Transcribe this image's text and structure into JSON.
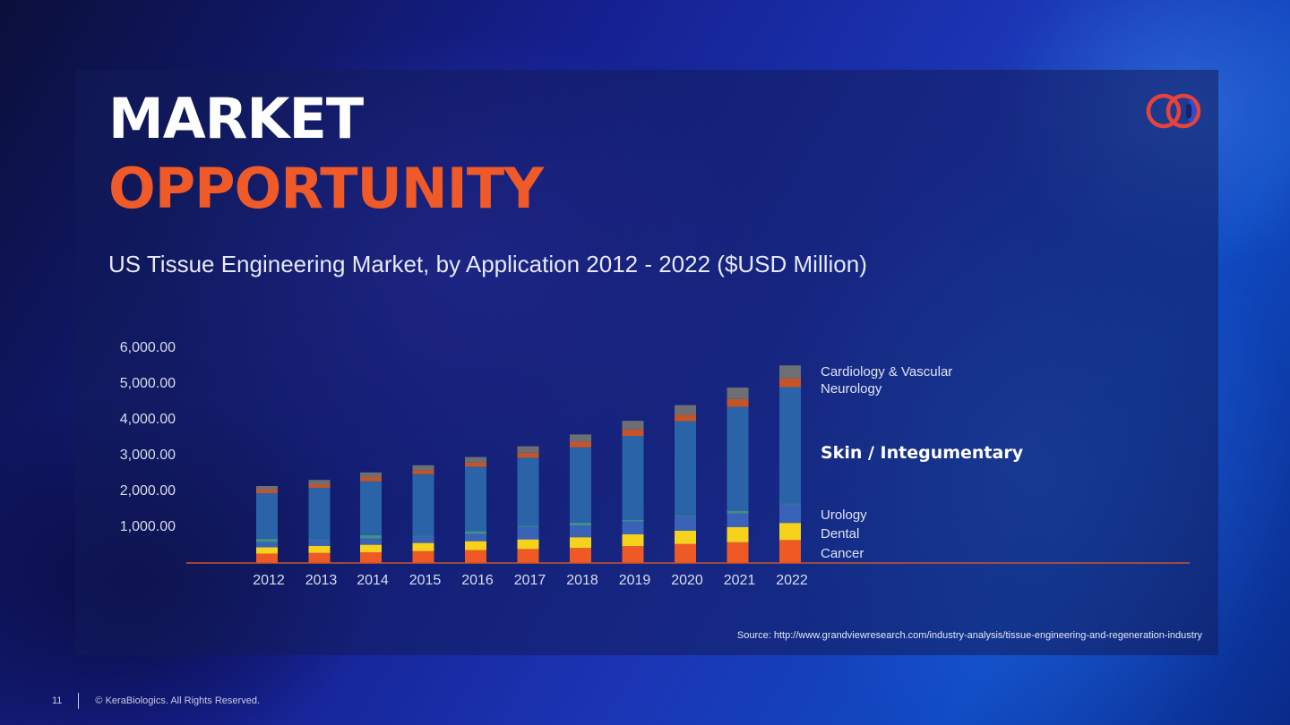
{
  "slide": {
    "title_line1": "MARKET",
    "title_line2": "OPPORTUNITY",
    "subtitle": "US Tissue Engineering Market, by Application 2012 - 2022 ($USD Million)",
    "source": "Source: http://www.grandviewresearch.com/industry-analysis/tissue-engineering-and-regeneration-industry",
    "page_number": "11",
    "copyright": "© KeraBiologics. All Rights Reserved.",
    "logo_icon": "kerabiologics-rings-logo"
  },
  "colors": {
    "orange": "#f05a28",
    "cancer": "#ef5a24",
    "dental": "#f6d21d",
    "urology": "#3a62b8",
    "ortho": "#3f8f8a",
    "skin": "#2a63a8",
    "neurology": "#c4552a",
    "cardio": "#6d6f74"
  },
  "chart_data": {
    "type": "bar",
    "stacked": true,
    "categories": [
      "2012",
      "2013",
      "2014",
      "2015",
      "2016",
      "2017",
      "2018",
      "2019",
      "2020",
      "2021",
      "2022"
    ],
    "series": [
      {
        "name": "Cancer",
        "values": [
          260,
          280,
          300,
          330,
          360,
          390,
          420,
          470,
          530,
          580,
          640
        ]
      },
      {
        "name": "Dental",
        "values": [
          180,
          200,
          210,
          230,
          250,
          270,
          300,
          330,
          370,
          420,
          480
        ]
      },
      {
        "name": "Urology",
        "values": [
          140,
          160,
          170,
          180,
          200,
          350,
          330,
          360,
          400,
          380,
          520
        ]
      },
      {
        "name": "",
        "values": [
          100,
          20,
          100,
          20,
          80,
          30,
          80,
          40,
          20,
          80,
          20
        ]
      },
      {
        "name": "Skin / Integumentary",
        "values": [
          1270,
          1440,
          1500,
          1720,
          1800,
          1900,
          2100,
          2350,
          2640,
          2900,
          3250
        ]
      },
      {
        "name": "Neurology",
        "values": [
          100,
          100,
          120,
          110,
          120,
          140,
          160,
          180,
          180,
          220,
          250
        ]
      },
      {
        "name": "Cardiology & Vascular",
        "values": [
          100,
          120,
          130,
          140,
          150,
          180,
          200,
          240,
          270,
          320,
          360
        ]
      }
    ],
    "yticks": [
      "1,000.00",
      "2,000.00",
      "3,000.00",
      "4,000.00",
      "5,000.00",
      "6,000.00"
    ],
    "ylim": [
      0,
      6000
    ],
    "legend_labels": {
      "cardio": "Cardiology & Vascular",
      "neurology": "Neurology",
      "skin": "Skin / Integumentary",
      "urology": "Urology",
      "dental": "Dental",
      "cancer": "Cancer"
    },
    "legend_position": "right",
    "grid": false
  }
}
